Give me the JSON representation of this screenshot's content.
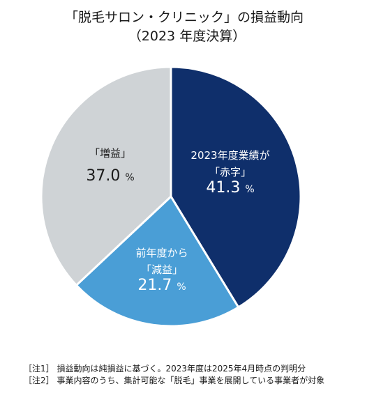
{
  "title_line1": "「脱毛サロン・クリニック」の損益動向",
  "title_line2": "（2023 年度決算）",
  "chart_data": {
    "type": "pie",
    "title": "「脱毛サロン・クリニック」の損益動向（2023 年度決算）",
    "unit": "%",
    "slices": [
      {
        "label_lines": [
          "2023年度業績が",
          "「赤字」"
        ],
        "value": 41.3,
        "value_text": "41.3",
        "color": "#0f2f6b",
        "text_color": "#ffffff"
      },
      {
        "label_lines": [
          "前年度から",
          "「減益」"
        ],
        "value": 21.7,
        "value_text": "21.7",
        "color": "#4a9ed6",
        "text_color": "#ffffff"
      },
      {
        "label_lines": [
          "「増益」"
        ],
        "value": 37.0,
        "value_text": "37.0",
        "color": "#cfd3d6",
        "text_color": "#1a1a1a"
      }
    ]
  },
  "notes": [
    "［注1］ 損益動向は純損益に基づく。2023年度は2025年4月時点の判明分",
    "［注2］ 事業内容のうち、集計可能な「脱毛」事業を展開している事業者が対象"
  ]
}
